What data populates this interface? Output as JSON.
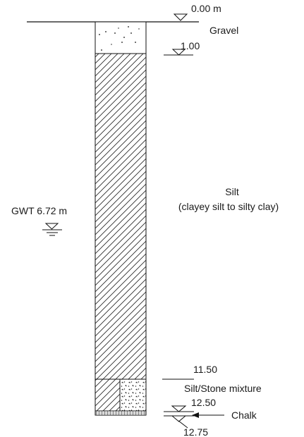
{
  "levels": {
    "top_depth": "0.00 m",
    "gravel_base": "1.00",
    "silt_base": "11.50",
    "mixture_base": "12.50",
    "chalk_level": "12.75"
  },
  "layers": {
    "gravel": "Gravel",
    "silt": "Silt",
    "silt_note": "(clayey silt to silty clay)",
    "mixture": "Silt/Stone mixture",
    "chalk": "Chalk"
  },
  "groundwater": {
    "label": "GWT 6.72 m"
  }
}
